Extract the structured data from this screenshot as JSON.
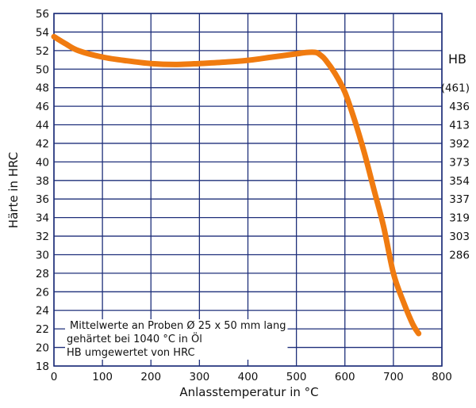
{
  "chart_data": {
    "type": "line",
    "title": "",
    "xlabel": "Anlasstemperatur in °C",
    "ylabel": "Härte in HRC",
    "xlim": [
      0,
      800
    ],
    "ylim": [
      18,
      56
    ],
    "x_ticks": [
      0,
      100,
      200,
      300,
      400,
      500,
      600,
      700,
      800
    ],
    "y_ticks": [
      18,
      20,
      22,
      24,
      26,
      28,
      30,
      32,
      34,
      36,
      38,
      40,
      42,
      44,
      46,
      48,
      50,
      52,
      54,
      56
    ],
    "grid": true,
    "series": [
      {
        "color": "#f07b10",
        "x": [
          0,
          25,
          50,
          100,
          150,
          200,
          250,
          300,
          350,
          400,
          450,
          500,
          520,
          540,
          550,
          560,
          580,
          600,
          620,
          640,
          660,
          680,
          700,
          720,
          740,
          752
        ],
        "y": [
          53.5,
          52.7,
          52.0,
          51.3,
          50.9,
          50.6,
          50.5,
          50.6,
          50.75,
          50.95,
          51.3,
          51.65,
          51.8,
          51.8,
          51.5,
          51.0,
          49.5,
          47.5,
          44.5,
          41.0,
          37.0,
          33.0,
          28.0,
          25.0,
          22.5,
          21.5
        ]
      }
    ],
    "secondary_axis": {
      "label": "HB",
      "ticks": [
        {
          "hrc": 48,
          "label": "(461)"
        },
        {
          "hrc": 46,
          "label": "436"
        },
        {
          "hrc": 44,
          "label": "413"
        },
        {
          "hrc": 42,
          "label": "392"
        },
        {
          "hrc": 40,
          "label": "373"
        },
        {
          "hrc": 38,
          "label": "354"
        },
        {
          "hrc": 36,
          "label": "337"
        },
        {
          "hrc": 34,
          "label": "319"
        },
        {
          "hrc": 32,
          "label": "303"
        },
        {
          "hrc": 30,
          "label": "286"
        }
      ]
    },
    "annotation": {
      "lines": [
        "Mittelwerte an Proben Ø 25 x 50 mm lang",
        "gehärtet bei 1040 °C in Öl",
        "HB umgewertet von HRC"
      ]
    },
    "colors": {
      "grid": "#1e2f7a",
      "curve": "#f07b10",
      "text": "#111111"
    }
  }
}
